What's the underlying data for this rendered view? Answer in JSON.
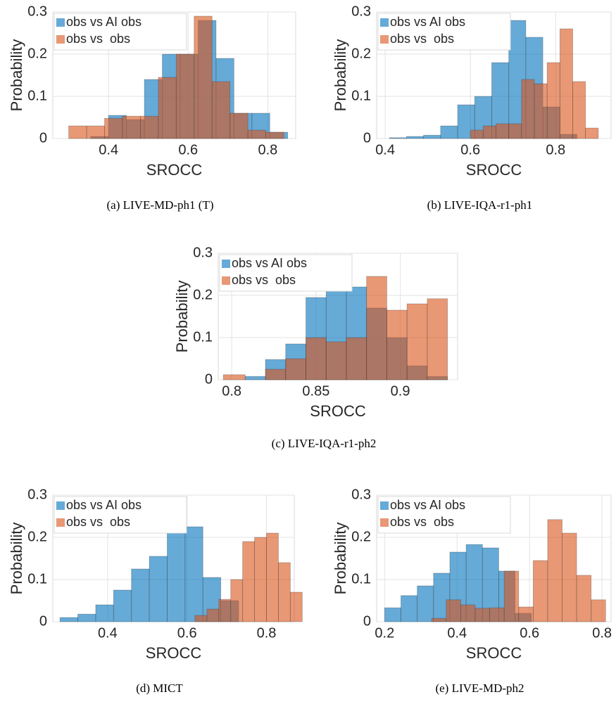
{
  "chart_data": [
    {
      "type": "histogram",
      "caption": "(a) LIVE-MD-ph1 (T)",
      "xlabel": "SROCC",
      "ylabel": "Probability",
      "xlim": [
        0.26,
        0.87
      ],
      "ylim": [
        0,
        0.3
      ],
      "xticks": [
        0.4,
        0.6,
        0.8
      ],
      "yticks": [
        0,
        0.1,
        0.2,
        0.3
      ],
      "grid": true,
      "legend": "upper-left",
      "series": [
        {
          "name": "obs vs AI obs",
          "color": "#0072bd",
          "bins": [
            0.355,
            0.4,
            0.445,
            0.49,
            0.535,
            0.58,
            0.625,
            0.67,
            0.715,
            0.76,
            0.805,
            0.85
          ],
          "values": [
            0.005,
            0.055,
            0.045,
            0.14,
            0.2,
            0.2,
            0.28,
            0.19,
            0.06,
            0.06,
            0.015
          ]
        },
        {
          "name": "obs vs  obs",
          "color": "#d95319",
          "bins": [
            0.3,
            0.345,
            0.39,
            0.435,
            0.48,
            0.525,
            0.57,
            0.615,
            0.66,
            0.705,
            0.75,
            0.795,
            0.84
          ],
          "values": [
            0.03,
            0.03,
            0.048,
            0.053,
            0.053,
            0.145,
            0.2,
            0.29,
            0.135,
            0.06,
            0.02,
            0.015
          ]
        }
      ]
    },
    {
      "type": "histogram",
      "caption": "(b) LIVE-IQA-r1-ph1",
      "xlabel": "SROCC",
      "ylabel": "Probability",
      "xlim": [
        0.38,
        0.93
      ],
      "ylim": [
        0,
        0.3
      ],
      "xticks": [
        0.4,
        0.6,
        0.8
      ],
      "yticks": [
        0,
        0.1,
        0.2,
        0.3
      ],
      "grid": true,
      "legend": "upper-left",
      "series": [
        {
          "name": "obs vs AI obs",
          "color": "#0072bd",
          "bins": [
            0.41,
            0.45,
            0.49,
            0.53,
            0.57,
            0.61,
            0.65,
            0.69,
            0.73,
            0.77,
            0.81,
            0.85
          ],
          "values": [
            0.002,
            0.005,
            0.008,
            0.03,
            0.08,
            0.1,
            0.18,
            0.28,
            0.24,
            0.075,
            0.01
          ]
        },
        {
          "name": "obs vs  obs",
          "color": "#d95319",
          "bins": [
            0.6,
            0.63,
            0.66,
            0.69,
            0.72,
            0.75,
            0.78,
            0.81,
            0.84,
            0.87,
            0.9
          ],
          "values": [
            0.02,
            0.03,
            0.035,
            0.035,
            0.14,
            0.13,
            0.18,
            0.26,
            0.135,
            0.025
          ]
        }
      ]
    },
    {
      "type": "histogram",
      "caption": "(c) LIVE-IQA-r1-ph2",
      "xlabel": "SROCC",
      "ylabel": "Probability",
      "xlim": [
        0.792,
        0.934
      ],
      "ylim": [
        0,
        0.3
      ],
      "xticks": [
        0.8,
        0.85,
        0.9
      ],
      "yticks": [
        0,
        0.1,
        0.2,
        0.3
      ],
      "grid": true,
      "legend": "upper-left",
      "series": [
        {
          "name": "obs vs AI obs",
          "color": "#0072bd",
          "bins": [
            0.808,
            0.82,
            0.832,
            0.844,
            0.856,
            0.868,
            0.88,
            0.892,
            0.904,
            0.916,
            0.928
          ],
          "values": [
            0.008,
            0.048,
            0.085,
            0.195,
            0.228,
            0.22,
            0.17,
            0.1,
            0.033,
            0.008
          ]
        },
        {
          "name": "obs vs  obs",
          "color": "#d95319",
          "bins": [
            0.795,
            0.808,
            0.82,
            0.832,
            0.844,
            0.856,
            0.868,
            0.88,
            0.892,
            0.904,
            0.916,
            0.928
          ],
          "values": [
            0.012,
            0,
            0.025,
            0.05,
            0.1,
            0.09,
            0.1,
            0.245,
            0.165,
            0.18,
            0.192
          ]
        }
      ]
    },
    {
      "type": "histogram",
      "caption": "(d) MICT",
      "xlabel": "SROCC",
      "ylabel": "Probability",
      "xlim": [
        0.262,
        0.87
      ],
      "ylim": [
        0,
        0.3
      ],
      "xticks": [
        0.4,
        0.6,
        0.8
      ],
      "yticks": [
        0,
        0.1,
        0.2,
        0.3
      ],
      "grid": true,
      "legend": "upper-left",
      "series": [
        {
          "name": "obs vs AI obs",
          "color": "#0072bd",
          "bins": [
            0.28,
            0.325,
            0.37,
            0.415,
            0.46,
            0.505,
            0.55,
            0.595,
            0.64,
            0.685,
            0.73
          ],
          "values": [
            0.01,
            0.018,
            0.04,
            0.075,
            0.125,
            0.155,
            0.21,
            0.225,
            0.105,
            0.05
          ]
        },
        {
          "name": "obs vs  obs",
          "color": "#d95319",
          "bins": [
            0.62,
            0.65,
            0.68,
            0.71,
            0.74,
            0.77,
            0.8,
            0.83,
            0.86,
            0.89
          ],
          "values": [
            0.015,
            0.03,
            0.053,
            0.1,
            0.19,
            0.2,
            0.21,
            0.14,
            0.07
          ]
        }
      ]
    },
    {
      "type": "histogram",
      "caption": "(e) LIVE-MD-ph2",
      "xlabel": "SROCC",
      "ylabel": "Probability",
      "xlim": [
        0.178,
        0.825
      ],
      "ylim": [
        0,
        0.3
      ],
      "xticks": [
        0.2,
        0.4,
        0.6,
        0.8
      ],
      "yticks": [
        0,
        0.1,
        0.2,
        0.3
      ],
      "grid": true,
      "legend": "upper-left",
      "series": [
        {
          "name": "obs vs AI obs",
          "color": "#0072bd",
          "bins": [
            0.2,
            0.245,
            0.29,
            0.335,
            0.38,
            0.425,
            0.47,
            0.515,
            0.56,
            0.605
          ],
          "values": [
            0.033,
            0.062,
            0.085,
            0.115,
            0.165,
            0.183,
            0.175,
            0.12,
            0.02
          ]
        },
        {
          "name": "obs vs  obs",
          "color": "#d95319",
          "bins": [
            0.33,
            0.37,
            0.41,
            0.45,
            0.49,
            0.53,
            0.57,
            0.61,
            0.65,
            0.69,
            0.73,
            0.77,
            0.81
          ],
          "values": [
            0.008,
            0.052,
            0.04,
            0.032,
            0.033,
            0.12,
            0.035,
            0.145,
            0.242,
            0.21,
            0.11,
            0.052
          ]
        }
      ]
    }
  ]
}
